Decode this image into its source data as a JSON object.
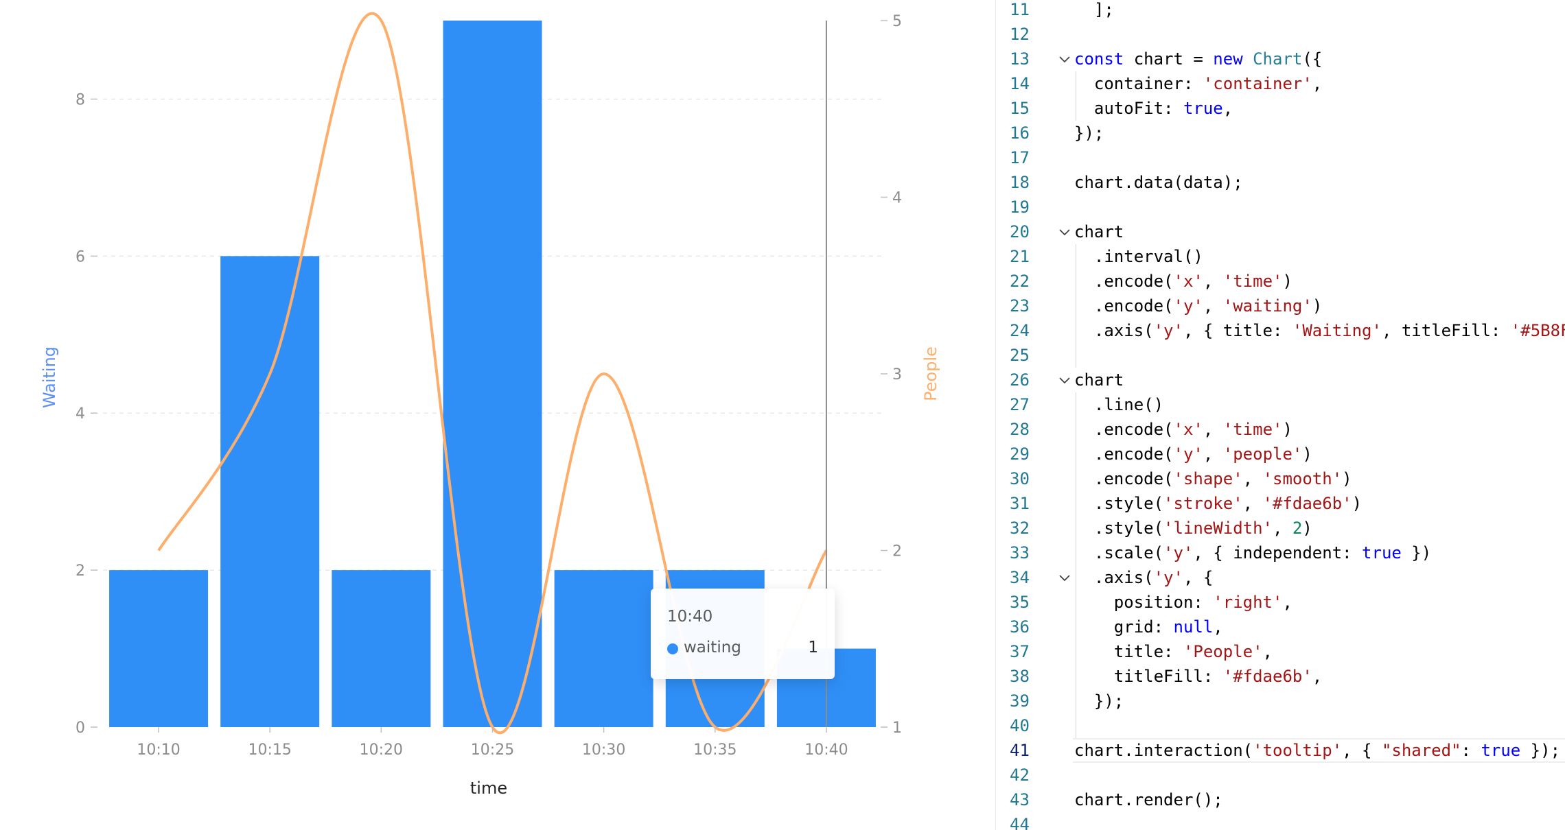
{
  "chart_data": {
    "type": "bar+line",
    "categories": [
      "10:10",
      "10:15",
      "10:20",
      "10:25",
      "10:30",
      "10:35",
      "10:40"
    ],
    "series": [
      {
        "name": "waiting",
        "type": "bar",
        "axis": "left",
        "values": [
          2,
          6,
          2,
          9,
          2,
          2,
          1
        ],
        "color": "#2f8ff7"
      },
      {
        "name": "people",
        "type": "line",
        "axis": "right",
        "values": [
          2,
          3,
          5,
          1,
          3,
          1,
          2
        ],
        "color": "#fdae6b"
      }
    ],
    "xlabel": "time",
    "ylabel_left": "Waiting",
    "ylabel_left_color": "#5b8ff9",
    "ylabel_right": "People",
    "ylabel_right_color": "#fdae6b",
    "ylim_left": [
      0,
      9
    ],
    "ylim_right": [
      1,
      5
    ],
    "yticks_left": [
      0,
      2,
      4,
      6,
      8
    ],
    "yticks_right": [
      1,
      2,
      3,
      4,
      5
    ],
    "grid": "horizontal dashed, left axis",
    "crosshair_category": "10:40"
  },
  "tooltip": {
    "title": "10:40",
    "items": [
      {
        "name": "waiting",
        "value": "1",
        "color": "#2f8ff7"
      }
    ]
  },
  "editor": {
    "active_line": 41,
    "lines": [
      {
        "num": "11",
        "fold": false,
        "tokens": [
          {
            "t": "  ];",
            "c": ""
          }
        ]
      },
      {
        "num": "12",
        "fold": false,
        "tokens": []
      },
      {
        "num": "13",
        "fold": true,
        "tokens": [
          {
            "t": "const",
            "c": "k"
          },
          {
            "t": " chart = ",
            "c": ""
          },
          {
            "t": "new",
            "c": "k"
          },
          {
            "t": " ",
            "c": ""
          },
          {
            "t": "Chart",
            "c": "c"
          },
          {
            "t": "({",
            "c": ""
          }
        ]
      },
      {
        "num": "14",
        "fold": false,
        "tokens": [
          {
            "t": "  container: ",
            "c": ""
          },
          {
            "t": "'container'",
            "c": "s"
          },
          {
            "t": ",",
            "c": ""
          }
        ]
      },
      {
        "num": "15",
        "fold": false,
        "tokens": [
          {
            "t": "  autoFit: ",
            "c": ""
          },
          {
            "t": "true",
            "c": "k"
          },
          {
            "t": ",",
            "c": ""
          }
        ]
      },
      {
        "num": "16",
        "fold": false,
        "tokens": [
          {
            "t": "});",
            "c": ""
          }
        ]
      },
      {
        "num": "17",
        "fold": false,
        "tokens": []
      },
      {
        "num": "18",
        "fold": false,
        "tokens": [
          {
            "t": "chart.data(data);",
            "c": ""
          }
        ]
      },
      {
        "num": "19",
        "fold": false,
        "tokens": []
      },
      {
        "num": "20",
        "fold": true,
        "tokens": [
          {
            "t": "chart",
            "c": ""
          }
        ]
      },
      {
        "num": "21",
        "fold": false,
        "tokens": [
          {
            "t": "  .interval()",
            "c": ""
          }
        ]
      },
      {
        "num": "22",
        "fold": false,
        "tokens": [
          {
            "t": "  .encode(",
            "c": ""
          },
          {
            "t": "'x'",
            "c": "s"
          },
          {
            "t": ", ",
            "c": ""
          },
          {
            "t": "'time'",
            "c": "s"
          },
          {
            "t": ")",
            "c": ""
          }
        ]
      },
      {
        "num": "23",
        "fold": false,
        "tokens": [
          {
            "t": "  .encode(",
            "c": ""
          },
          {
            "t": "'y'",
            "c": "s"
          },
          {
            "t": ", ",
            "c": ""
          },
          {
            "t": "'waiting'",
            "c": "s"
          },
          {
            "t": ")",
            "c": ""
          }
        ]
      },
      {
        "num": "24",
        "fold": false,
        "tokens": [
          {
            "t": "  .axis(",
            "c": ""
          },
          {
            "t": "'y'",
            "c": "s"
          },
          {
            "t": ", { title: ",
            "c": ""
          },
          {
            "t": "'Waiting'",
            "c": "s"
          },
          {
            "t": ", titleFill: ",
            "c": ""
          },
          {
            "t": "'#5B8F",
            "c": "s"
          }
        ]
      },
      {
        "num": "25",
        "fold": false,
        "tokens": []
      },
      {
        "num": "26",
        "fold": true,
        "tokens": [
          {
            "t": "chart",
            "c": ""
          }
        ]
      },
      {
        "num": "27",
        "fold": false,
        "tokens": [
          {
            "t": "  .line()",
            "c": ""
          }
        ]
      },
      {
        "num": "28",
        "fold": false,
        "tokens": [
          {
            "t": "  .encode(",
            "c": ""
          },
          {
            "t": "'x'",
            "c": "s"
          },
          {
            "t": ", ",
            "c": ""
          },
          {
            "t": "'time'",
            "c": "s"
          },
          {
            "t": ")",
            "c": ""
          }
        ]
      },
      {
        "num": "29",
        "fold": false,
        "tokens": [
          {
            "t": "  .encode(",
            "c": ""
          },
          {
            "t": "'y'",
            "c": "s"
          },
          {
            "t": ", ",
            "c": ""
          },
          {
            "t": "'people'",
            "c": "s"
          },
          {
            "t": ")",
            "c": ""
          }
        ]
      },
      {
        "num": "30",
        "fold": false,
        "tokens": [
          {
            "t": "  .encode(",
            "c": ""
          },
          {
            "t": "'shape'",
            "c": "s"
          },
          {
            "t": ", ",
            "c": ""
          },
          {
            "t": "'smooth'",
            "c": "s"
          },
          {
            "t": ")",
            "c": ""
          }
        ]
      },
      {
        "num": "31",
        "fold": false,
        "tokens": [
          {
            "t": "  .style(",
            "c": ""
          },
          {
            "t": "'stroke'",
            "c": "s"
          },
          {
            "t": ", ",
            "c": ""
          },
          {
            "t": "'#fdae6b'",
            "c": "s"
          },
          {
            "t": ")",
            "c": ""
          }
        ]
      },
      {
        "num": "32",
        "fold": false,
        "tokens": [
          {
            "t": "  .style(",
            "c": ""
          },
          {
            "t": "'lineWidth'",
            "c": "s"
          },
          {
            "t": ", ",
            "c": ""
          },
          {
            "t": "2",
            "c": "n"
          },
          {
            "t": ")",
            "c": ""
          }
        ]
      },
      {
        "num": "33",
        "fold": false,
        "tokens": [
          {
            "t": "  .scale(",
            "c": ""
          },
          {
            "t": "'y'",
            "c": "s"
          },
          {
            "t": ", { independent: ",
            "c": ""
          },
          {
            "t": "true",
            "c": "k"
          },
          {
            "t": " })",
            "c": ""
          }
        ]
      },
      {
        "num": "34",
        "fold": true,
        "tokens": [
          {
            "t": "  .axis(",
            "c": ""
          },
          {
            "t": "'y'",
            "c": "s"
          },
          {
            "t": ", {",
            "c": ""
          }
        ]
      },
      {
        "num": "35",
        "fold": false,
        "tokens": [
          {
            "t": "    position: ",
            "c": ""
          },
          {
            "t": "'right'",
            "c": "s"
          },
          {
            "t": ",",
            "c": ""
          }
        ]
      },
      {
        "num": "36",
        "fold": false,
        "tokens": [
          {
            "t": "    grid: ",
            "c": ""
          },
          {
            "t": "null",
            "c": "k"
          },
          {
            "t": ",",
            "c": ""
          }
        ]
      },
      {
        "num": "37",
        "fold": false,
        "tokens": [
          {
            "t": "    title: ",
            "c": ""
          },
          {
            "t": "'People'",
            "c": "s"
          },
          {
            "t": ",",
            "c": ""
          }
        ]
      },
      {
        "num": "38",
        "fold": false,
        "tokens": [
          {
            "t": "    titleFill: ",
            "c": ""
          },
          {
            "t": "'#fdae6b'",
            "c": "s"
          },
          {
            "t": ",",
            "c": ""
          }
        ]
      },
      {
        "num": "39",
        "fold": false,
        "tokens": [
          {
            "t": "  });",
            "c": ""
          }
        ]
      },
      {
        "num": "40",
        "fold": false,
        "tokens": []
      },
      {
        "num": "41",
        "fold": false,
        "tokens": [
          {
            "t": "chart.interaction(",
            "c": ""
          },
          {
            "t": "'tooltip'",
            "c": "s"
          },
          {
            "t": ", { ",
            "c": ""
          },
          {
            "t": "\"shared\"",
            "c": "s"
          },
          {
            "t": ": ",
            "c": ""
          },
          {
            "t": "true",
            "c": "k"
          },
          {
            "t": " });",
            "c": ""
          }
        ]
      },
      {
        "num": "42",
        "fold": false,
        "tokens": []
      },
      {
        "num": "43",
        "fold": false,
        "tokens": [
          {
            "t": "chart.render();",
            "c": ""
          }
        ]
      },
      {
        "num": "44",
        "fold": false,
        "tokens": []
      }
    ]
  }
}
